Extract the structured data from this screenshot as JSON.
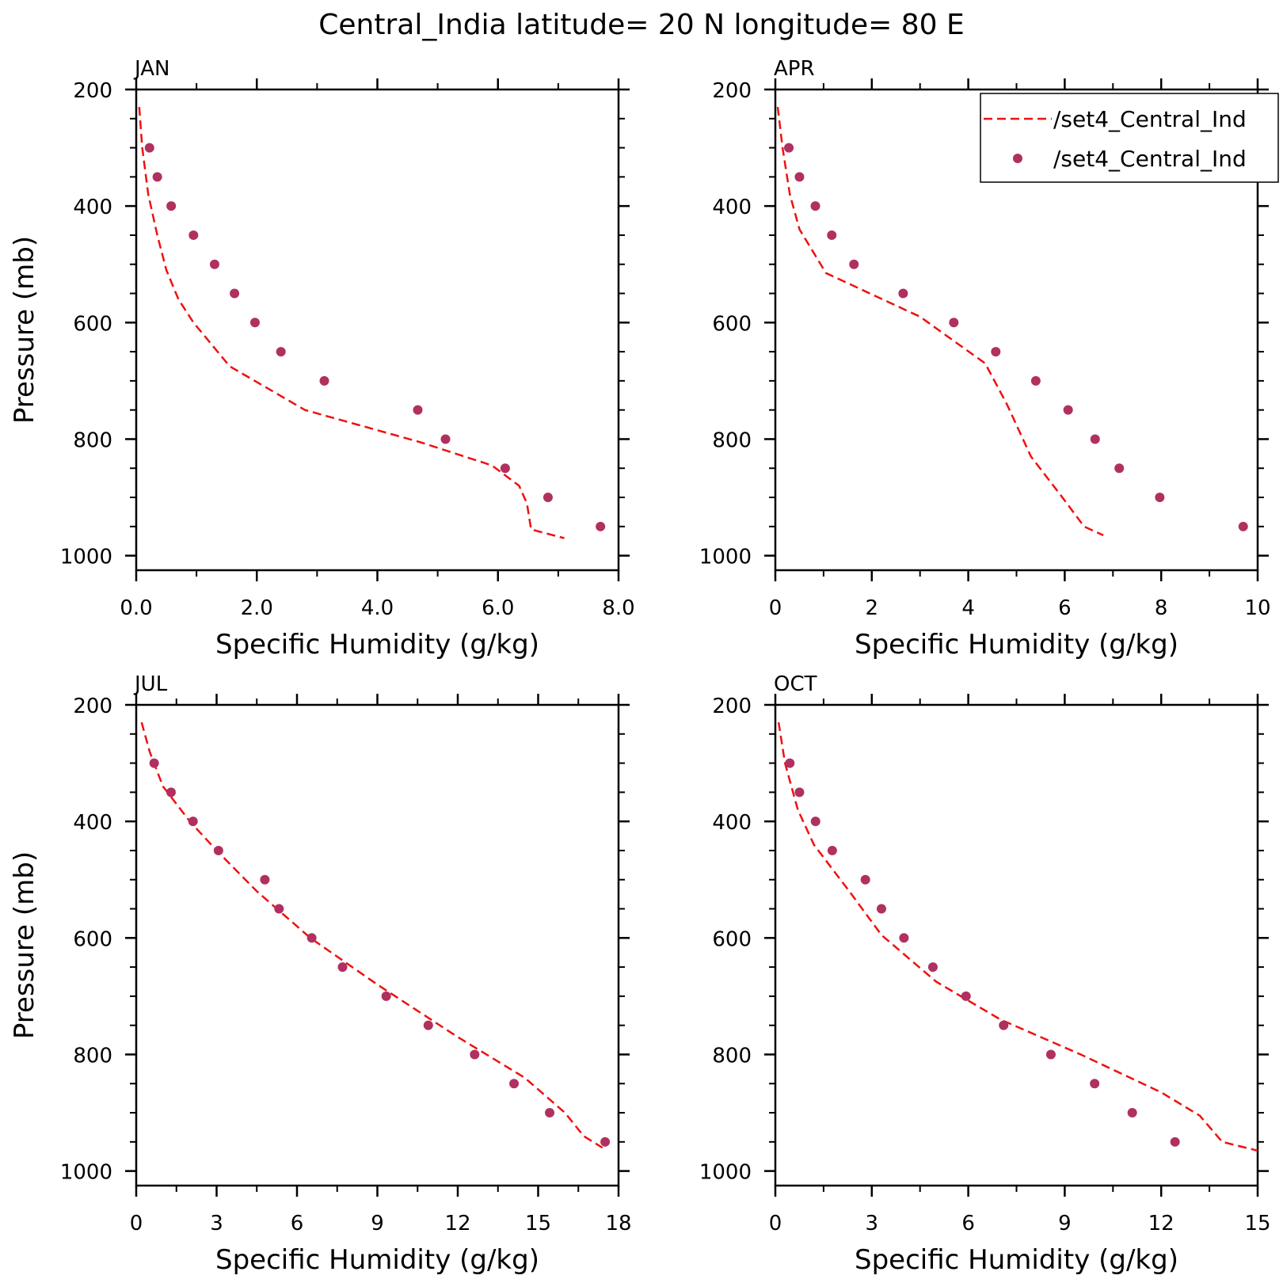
{
  "title": "Central_India  latitude= 20 N longitude= 80 E",
  "legend": {
    "entries": [
      {
        "label": "/set4_Central_Ind",
        "style": "dashed-line",
        "color": "#ee1111"
      },
      {
        "label": "/set4_Central_Ind",
        "style": "dots",
        "color": "#b03060"
      }
    ]
  },
  "chart_data": [
    {
      "type": "line",
      "title": "JAN",
      "xlabel": "Specific Humidity (g/kg)",
      "ylabel": "Pressure (mb)",
      "xlim": [
        0,
        8
      ],
      "ylim": [
        200,
        1025
      ],
      "y_inverted": true,
      "xticks": [
        "0.0",
        "2.0",
        "4.0",
        "6.0",
        "8.0"
      ],
      "xtick_values": [
        0,
        2,
        4,
        6,
        8
      ],
      "yticks": [
        "200",
        "400",
        "600",
        "800",
        "1000"
      ],
      "ytick_values": [
        200,
        400,
        600,
        800,
        1000
      ],
      "series": [
        {
          "kind": "line",
          "x": [
            0.05,
            0.1,
            0.2,
            0.35,
            0.5,
            0.7,
            0.95,
            1.55,
            2.8,
            4.7,
            5.9,
            6.35,
            6.48,
            6.55,
            7.1
          ],
          "y": [
            230,
            300,
            380,
            450,
            510,
            560,
            600,
            675,
            750,
            805,
            845,
            880,
            910,
            955,
            970
          ]
        },
        {
          "kind": "scatter",
          "x": [
            0.22,
            0.35,
            0.58,
            0.95,
            1.3,
            1.63,
            1.97,
            2.4,
            3.12,
            4.67,
            5.13,
            6.12,
            6.83,
            7.7
          ],
          "y": [
            300,
            350,
            400,
            450,
            500,
            550,
            600,
            650,
            700,
            750,
            800,
            850,
            900,
            950
          ]
        }
      ]
    },
    {
      "type": "line",
      "title": "APR",
      "xlabel": "Specific Humidity (g/kg)",
      "ylabel": "",
      "xlim": [
        0,
        10
      ],
      "ylim": [
        200,
        1025
      ],
      "y_inverted": true,
      "xticks": [
        "0",
        "2",
        "4",
        "6",
        "8",
        "10"
      ],
      "xtick_values": [
        0,
        2,
        4,
        6,
        8,
        10
      ],
      "yticks": [
        "200",
        "400",
        "600",
        "800",
        "1000"
      ],
      "ytick_values": [
        200,
        400,
        600,
        800,
        1000
      ],
      "series": [
        {
          "kind": "line",
          "x": [
            0.05,
            0.15,
            0.3,
            0.5,
            1.05,
            3.0,
            4.35,
            4.8,
            5.3,
            5.95,
            6.4,
            6.8
          ],
          "y": [
            230,
            300,
            380,
            440,
            515,
            590,
            670,
            740,
            830,
            900,
            950,
            965
          ]
        },
        {
          "kind": "scatter",
          "x": [
            0.28,
            0.5,
            0.83,
            1.17,
            1.63,
            2.65,
            3.7,
            4.57,
            5.4,
            6.07,
            6.63,
            7.13,
            7.97,
            9.7
          ],
          "y": [
            300,
            350,
            400,
            450,
            500,
            550,
            600,
            650,
            700,
            750,
            800,
            850,
            900,
            950
          ]
        }
      ]
    },
    {
      "type": "line",
      "title": "JUL",
      "xlabel": "Specific Humidity (g/kg)",
      "ylabel": "Pressure (mb)",
      "xlim": [
        0,
        18
      ],
      "ylim": [
        200,
        1025
      ],
      "y_inverted": true,
      "xticks": [
        "0",
        "3",
        "6",
        "9",
        "12",
        "15",
        "18"
      ],
      "xtick_values": [
        0,
        3,
        6,
        9,
        12,
        15,
        18
      ],
      "yticks": [
        "200",
        "400",
        "600",
        "800",
        "1000"
      ],
      "ytick_values": [
        200,
        400,
        600,
        800,
        1000
      ],
      "series": [
        {
          "kind": "line",
          "x": [
            0.2,
            0.5,
            1.0,
            2.0,
            3.0,
            4.5,
            6.5,
            9.0,
            12.0,
            14.5,
            16.0,
            16.7,
            17.4
          ],
          "y": [
            230,
            280,
            340,
            400,
            450,
            520,
            600,
            680,
            770,
            840,
            900,
            940,
            960
          ]
        },
        {
          "kind": "scatter",
          "x": [
            0.67,
            1.3,
            2.12,
            3.07,
            4.8,
            5.33,
            6.55,
            7.7,
            9.33,
            10.9,
            12.63,
            14.1,
            15.43,
            17.5
          ],
          "y": [
            300,
            350,
            400,
            450,
            500,
            550,
            600,
            650,
            700,
            750,
            800,
            850,
            900,
            950
          ]
        }
      ]
    },
    {
      "type": "line",
      "title": "OCT",
      "xlabel": "Specific Humidity (g/kg)",
      "ylabel": "",
      "xlim": [
        0,
        15
      ],
      "ylim": [
        200,
        1025
      ],
      "y_inverted": true,
      "xticks": [
        "0",
        "3",
        "6",
        "9",
        "12",
        "15"
      ],
      "xtick_values": [
        0,
        3,
        6,
        9,
        12,
        15
      ],
      "yticks": [
        "200",
        "400",
        "600",
        "800",
        "1000"
      ],
      "ytick_values": [
        200,
        400,
        600,
        800,
        1000
      ],
      "series": [
        {
          "kind": "line",
          "x": [
            0.1,
            0.3,
            0.7,
            1.2,
            2.3,
            3.3,
            5.0,
            7.0,
            9.5,
            12.0,
            13.2,
            13.9,
            15.0
          ],
          "y": [
            230,
            300,
            380,
            440,
            520,
            595,
            675,
            740,
            800,
            865,
            905,
            950,
            965
          ]
        },
        {
          "kind": "scatter",
          "x": [
            0.45,
            0.75,
            1.25,
            1.77,
            2.8,
            3.3,
            4.0,
            4.9,
            5.93,
            7.1,
            8.57,
            9.93,
            11.1,
            12.43
          ],
          "y": [
            300,
            350,
            400,
            450,
            500,
            550,
            600,
            650,
            700,
            750,
            800,
            850,
            900,
            950
          ]
        }
      ]
    }
  ]
}
